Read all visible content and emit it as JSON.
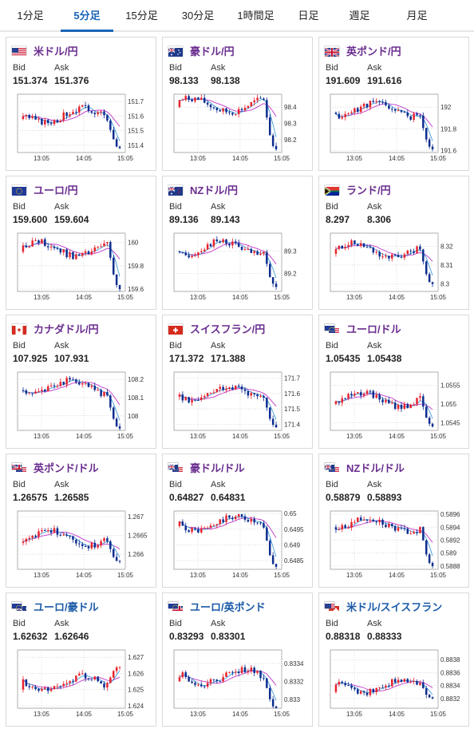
{
  "tabs": [
    {
      "label": "1分足",
      "active": false
    },
    {
      "label": "5分足",
      "active": true
    },
    {
      "label": "15分足",
      "active": false
    },
    {
      "label": "30分足",
      "active": false
    },
    {
      "label": "1時間足",
      "active": false
    },
    {
      "label": "日足",
      "active": false
    },
    {
      "label": "週足",
      "active": false
    },
    {
      "label": "月足",
      "active": false
    }
  ],
  "labels": {
    "bid": "Bid",
    "ask": "Ask"
  },
  "colors": {
    "up": "#e8242e",
    "down": "#0d2d8f",
    "ma": "#c236c9",
    "line": "#2b8fd6",
    "accent": "#1a64b6"
  },
  "pairs": [
    {
      "name": "米ドル/円",
      "flag": "us",
      "bid": "151.374",
      "ask": "151.376",
      "chart": {
        "ylim": [
          151.35,
          151.75
        ],
        "yticks": [
          {
            "v": 151.7,
            "t": "151.7"
          },
          {
            "v": 151.6,
            "t": "151.6"
          },
          {
            "v": 151.5,
            "t": "151.5"
          },
          {
            "v": 151.4,
            "t": "151.4"
          }
        ],
        "xticks": [
          "13:05",
          "14:05",
          "15:05"
        ],
        "start": 151.58,
        "end": 151.38,
        "seed": 3
      }
    },
    {
      "name": "豪ドル/円",
      "flag": "au",
      "bid": "98.133",
      "ask": "98.138",
      "chart": {
        "ylim": [
          98.12,
          98.48
        ],
        "yticks": [
          {
            "v": 98.4,
            "t": "98.4"
          },
          {
            "v": 98.3,
            "t": "98.3"
          },
          {
            "v": 98.2,
            "t": "98.2"
          }
        ],
        "xticks": [
          "13:05",
          "14:05",
          "15:05"
        ],
        "start": 98.4,
        "end": 98.14,
        "seed": 7
      }
    },
    {
      "name": "英ポンド/円",
      "flag": "gb",
      "bid": "191.609",
      "ask": "191.616",
      "chart": {
        "ylim": [
          191.58,
          192.12
        ],
        "yticks": [
          {
            "v": 192.0,
            "t": "192"
          },
          {
            "v": 191.8,
            "t": "191.8"
          },
          {
            "v": 191.6,
            "t": "191.6"
          }
        ],
        "xticks": [
          "13:05",
          "14:05",
          "15:05"
        ],
        "start": 191.95,
        "end": 191.61,
        "seed": 11
      }
    },
    {
      "name": "ユーロ/円",
      "flag": "eu",
      "bid": "159.600",
      "ask": "159.604",
      "chart": {
        "ylim": [
          159.58,
          160.08
        ],
        "yticks": [
          {
            "v": 160.0,
            "t": "160"
          },
          {
            "v": 159.8,
            "t": "159.8"
          },
          {
            "v": 159.6,
            "t": "159.6"
          }
        ],
        "xticks": [
          "13:05",
          "14:05",
          "15:05"
        ],
        "start": 159.92,
        "end": 159.6,
        "seed": 13
      }
    },
    {
      "name": "NZドル/円",
      "flag": "nz",
      "bid": "89.136",
      "ask": "89.143",
      "chart": {
        "ylim": [
          89.12,
          89.38
        ],
        "yticks": [
          {
            "v": 89.3,
            "t": "89.3"
          },
          {
            "v": 89.2,
            "t": "89.2"
          }
        ],
        "xticks": [
          "13:05",
          "14:05",
          "15:05"
        ],
        "start": 89.3,
        "end": 89.14,
        "seed": 17
      }
    },
    {
      "name": "ランド/円",
      "flag": "za",
      "bid": "8.297",
      "ask": "8.306",
      "chart": {
        "ylim": [
          8.296,
          8.327
        ],
        "yticks": [
          {
            "v": 8.32,
            "t": "8.32"
          },
          {
            "v": 8.31,
            "t": "8.31"
          },
          {
            "v": 8.3,
            "t": "8.3"
          }
        ],
        "xticks": [
          "13:05",
          "14:05",
          "15:05"
        ],
        "start": 8.316,
        "end": 8.3,
        "seed": 19
      }
    },
    {
      "name": "カナダドル/円",
      "flag": "ca",
      "bid": "107.925",
      "ask": "107.931",
      "chart": {
        "ylim": [
          107.92,
          108.24
        ],
        "yticks": [
          {
            "v": 108.2,
            "t": "108.2"
          },
          {
            "v": 108.1,
            "t": "108.1"
          },
          {
            "v": 108.0,
            "t": "108"
          }
        ],
        "xticks": [
          "13:05",
          "14:05",
          "15:05"
        ],
        "start": 108.14,
        "end": 107.93,
        "seed": 23
      }
    },
    {
      "name": "スイスフラン/円",
      "flag": "ch",
      "bid": "171.372",
      "ask": "171.388",
      "chart": {
        "ylim": [
          171.36,
          171.74
        ],
        "yticks": [
          {
            "v": 171.7,
            "t": "171.7"
          },
          {
            "v": 171.6,
            "t": "171.6"
          },
          {
            "v": 171.5,
            "t": "171.5"
          },
          {
            "v": 171.4,
            "t": "171.4"
          }
        ],
        "xticks": [
          "13:05",
          "14:05",
          "15:05"
        ],
        "start": 171.58,
        "end": 171.38,
        "seed": 29
      }
    },
    {
      "name": "ユーロ/ドル",
      "flag": "eu",
      "flag2": "us",
      "bid": "1.05435",
      "ask": "1.05438",
      "chart": {
        "ylim": [
          1.0543,
          1.05585
        ],
        "yticks": [
          {
            "v": 1.0555,
            "t": "1.0555"
          },
          {
            "v": 1.055,
            "t": "1.055"
          },
          {
            "v": 1.0545,
            "t": "1.0545"
          }
        ],
        "xticks": [
          "13:05",
          "14:05",
          "15:05"
        ],
        "start": 1.055,
        "end": 1.0544,
        "seed": 31
      }
    },
    {
      "name": "英ポンド/ドル",
      "flag": "gb",
      "flag2": "us",
      "bid": "1.26575",
      "ask": "1.26585",
      "chart": {
        "ylim": [
          1.2656,
          1.26715
        ],
        "yticks": [
          {
            "v": 1.267,
            "t": "1.267"
          },
          {
            "v": 1.2665,
            "t": "1.2665"
          },
          {
            "v": 1.266,
            "t": "1.266"
          }
        ],
        "xticks": [
          "13:05",
          "14:05",
          "15:05"
        ],
        "start": 1.2663,
        "end": 1.2658,
        "seed": 37
      }
    },
    {
      "name": "豪ドル/ドル",
      "flag": "au",
      "flag2": "us",
      "bid": "0.64827",
      "ask": "0.64831",
      "chart": {
        "ylim": [
          0.64822,
          0.65008
        ],
        "yticks": [
          {
            "v": 0.65,
            "t": "0.65"
          },
          {
            "v": 0.6495,
            "t": "0.6495"
          },
          {
            "v": 0.649,
            "t": "0.649"
          },
          {
            "v": 0.6485,
            "t": "0.6485"
          }
        ],
        "xticks": [
          "13:05",
          "14:05",
          "15:05"
        ],
        "start": 0.6496,
        "end": 0.6483,
        "seed": 41
      }
    },
    {
      "name": "NZドル/ドル",
      "flag": "nz",
      "flag2": "us",
      "bid": "0.58879",
      "ask": "0.58893",
      "chart": {
        "ylim": [
          0.58875,
          0.58965
        ],
        "yticks": [
          {
            "v": 0.5896,
            "t": "0.5896"
          },
          {
            "v": 0.5894,
            "t": "0.5894"
          },
          {
            "v": 0.5892,
            "t": "0.5892"
          },
          {
            "v": 0.589,
            "t": "0.589"
          },
          {
            "v": 0.5888,
            "t": "0.5888"
          }
        ],
        "xticks": [
          "13:05",
          "14:05",
          "15:05"
        ],
        "start": 0.5894,
        "end": 0.5888,
        "seed": 43
      }
    },
    {
      "name": "ユーロ/豪ドル",
      "flag": "eu",
      "flag2": "au",
      "bid": "1.62632",
      "ask": "1.62646",
      "blue": true,
      "chart": {
        "ylim": [
          1.62385,
          1.62745
        ],
        "yticks": [
          {
            "v": 1.627,
            "t": "1.627"
          },
          {
            "v": 1.626,
            "t": "1.626"
          },
          {
            "v": 1.625,
            "t": "1.625"
          },
          {
            "v": 1.624,
            "t": "1.624"
          }
        ],
        "xticks": [
          "13:05",
          "14:05",
          "15:05"
        ],
        "start": 1.625,
        "end": 1.6264,
        "seed": 47
      }
    },
    {
      "name": "ユーロ/英ポンド",
      "flag": "eu",
      "flag2": "gb",
      "bid": "0.83293",
      "ask": "0.83301",
      "blue": true,
      "chart": {
        "ylim": [
          0.8329,
          0.83355
        ],
        "yticks": [
          {
            "v": 0.8334,
            "t": "0.8334"
          },
          {
            "v": 0.8332,
            "t": "0.8332"
          },
          {
            "v": 0.833,
            "t": "0.833"
          }
        ],
        "xticks": [
          "13:05",
          "14:05",
          "15:05"
        ],
        "start": 0.8332,
        "end": 0.8329,
        "seed": 53
      }
    },
    {
      "name": "米ドル/スイスフラン",
      "flag": "us",
      "flag2": "ch",
      "bid": "0.88318",
      "ask": "0.88333",
      "blue": true,
      "chart": {
        "ylim": [
          0.88305,
          0.88395
        ],
        "yticks": [
          {
            "v": 0.8838,
            "t": "0.8838"
          },
          {
            "v": 0.8836,
            "t": "0.8836"
          },
          {
            "v": 0.8834,
            "t": "0.8834"
          },
          {
            "v": 0.8832,
            "t": "0.8832"
          }
        ],
        "xticks": [
          "13:05",
          "14:05",
          "15:05"
        ],
        "start": 0.8833,
        "end": 0.8832,
        "seed": 59
      }
    }
  ]
}
